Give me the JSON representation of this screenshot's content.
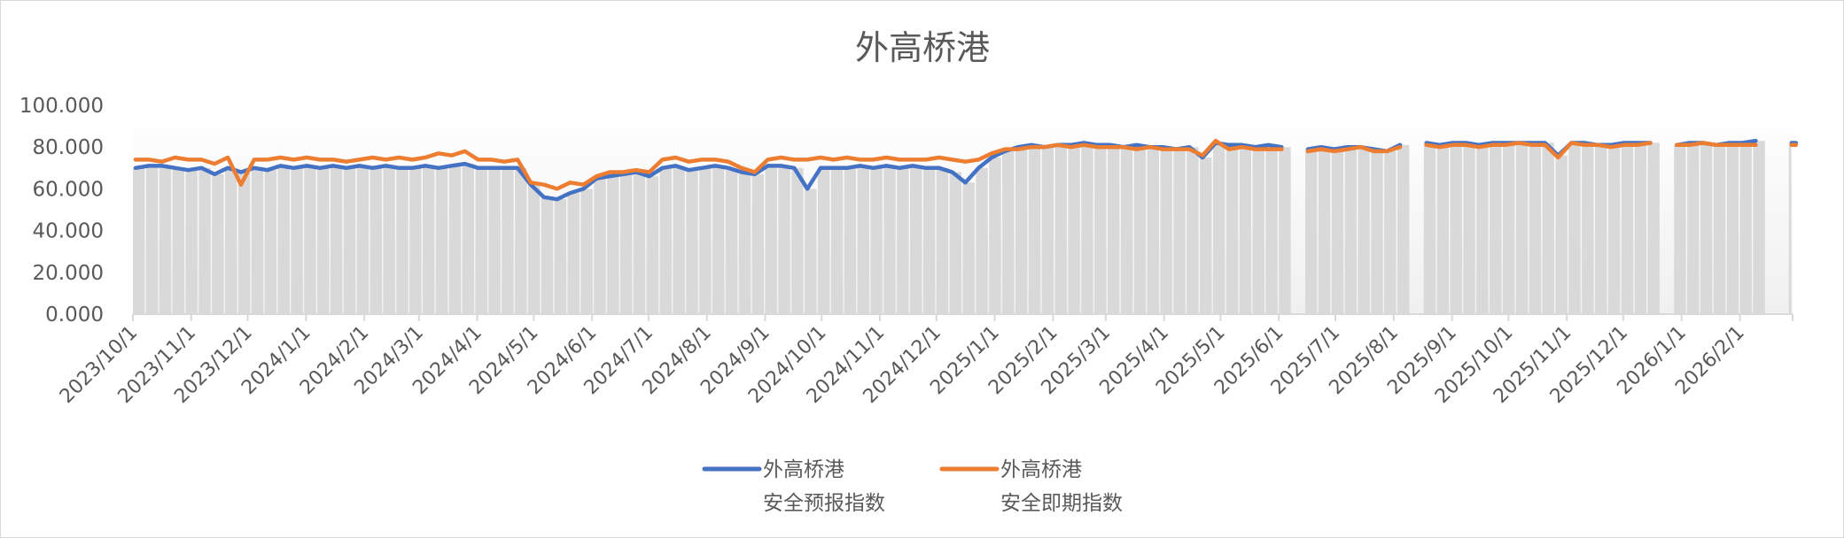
{
  "chart_data": {
    "type": "line",
    "title": "外高桥港",
    "ylim": [
      0,
      100
    ],
    "yticks": [
      "0.000",
      "20.000",
      "40.000",
      "60.000",
      "80.000",
      "100.000"
    ],
    "xlim": [
      "2023-10-01",
      "2026-03-01"
    ],
    "xticks": [
      "2023/10/1",
      "2023/11/1",
      "2023/12/1",
      "2024/1/1",
      "2024/2/1",
      "2024/3/1",
      "2024/4/1",
      "2024/5/1",
      "2024/6/1",
      "2024/7/1",
      "2024/8/1",
      "2024/9/1",
      "2024/10/1",
      "2024/11/1",
      "2024/12/1",
      "2025/1/1",
      "2025/2/1",
      "2025/3/1",
      "2025/4/1",
      "2025/5/1",
      "2025/6/1",
      "2025/7/1",
      "2025/8/1",
      "2025/9/1",
      "2025/10/1",
      "2025/11/1",
      "2025/12/1",
      "2026/1/1",
      "2026/2/1"
    ],
    "legend_placement": "bottom",
    "grid": false,
    "colors": {
      "forecast": "#4472c4",
      "immediate": "#ed7d31",
      "columns": "#d9d9d9"
    },
    "series": [
      {
        "name": "外高桥港\n安全预报指数",
        "legend_line1": "外高桥港",
        "legend_line2": "安全预报指数"
      },
      {
        "name": "外高桥港\n安全即期指数",
        "legend_line1": "外高桥港",
        "legend_line2": "安全即期指数"
      }
    ],
    "columns_follow": "forecast",
    "points": [
      [
        "2023-10-01",
        70,
        74
      ],
      [
        "2023-10-08",
        71,
        74
      ],
      [
        "2023-10-15",
        71,
        73
      ],
      [
        "2023-10-22",
        70,
        75
      ],
      [
        "2023-10-29",
        69,
        74
      ],
      [
        "2023-11-05",
        70,
        74
      ],
      [
        "2023-11-12",
        67,
        72
      ],
      [
        "2023-11-19",
        70,
        75
      ],
      [
        "2023-11-26",
        68,
        62
      ],
      [
        "2023-12-03",
        70,
        74
      ],
      [
        "2023-12-10",
        69,
        74
      ],
      [
        "2023-12-17",
        71,
        75
      ],
      [
        "2023-12-24",
        70,
        74
      ],
      [
        "2023-12-31",
        71,
        75
      ],
      [
        "2024-01-07",
        70,
        74
      ],
      [
        "2024-01-14",
        71,
        74
      ],
      [
        "2024-01-21",
        70,
        73
      ],
      [
        "2024-01-28",
        71,
        74
      ],
      [
        "2024-02-04",
        70,
        75
      ],
      [
        "2024-02-11",
        71,
        74
      ],
      [
        "2024-02-18",
        70,
        75
      ],
      [
        "2024-02-25",
        70,
        74
      ],
      [
        "2024-03-03",
        71,
        75
      ],
      [
        "2024-03-10",
        70,
        77
      ],
      [
        "2024-03-17",
        71,
        76
      ],
      [
        "2024-03-24",
        72,
        78
      ],
      [
        "2024-03-31",
        70,
        74
      ],
      [
        "2024-04-07",
        70,
        74
      ],
      [
        "2024-04-14",
        70,
        73
      ],
      [
        "2024-04-21",
        70,
        74
      ],
      [
        "2024-04-28",
        62,
        63
      ],
      [
        "2024-05-05",
        56,
        62
      ],
      [
        "2024-05-12",
        55,
        60
      ],
      [
        "2024-05-19",
        58,
        63
      ],
      [
        "2024-05-26",
        60,
        62
      ],
      [
        "2024-06-02",
        65,
        66
      ],
      [
        "2024-06-09",
        66,
        68
      ],
      [
        "2024-06-16",
        67,
        68
      ],
      [
        "2024-06-23",
        68,
        69
      ],
      [
        "2024-06-30",
        66,
        68
      ],
      [
        "2024-07-07",
        70,
        74
      ],
      [
        "2024-07-14",
        71,
        75
      ],
      [
        "2024-07-21",
        69,
        73
      ],
      [
        "2024-07-28",
        70,
        74
      ],
      [
        "2024-08-04",
        71,
        74
      ],
      [
        "2024-08-11",
        70,
        73
      ],
      [
        "2024-08-18",
        68,
        70
      ],
      [
        "2024-08-25",
        67,
        68
      ],
      [
        "2024-09-01",
        71,
        74
      ],
      [
        "2024-09-08",
        71,
        75
      ],
      [
        "2024-09-15",
        70,
        74
      ],
      [
        "2024-09-22",
        60,
        74
      ],
      [
        "2024-09-29",
        70,
        75
      ],
      [
        "2024-10-06",
        70,
        74
      ],
      [
        "2024-10-13",
        70,
        75
      ],
      [
        "2024-10-20",
        71,
        74
      ],
      [
        "2024-10-27",
        70,
        74
      ],
      [
        "2024-11-03",
        71,
        75
      ],
      [
        "2024-11-10",
        70,
        74
      ],
      [
        "2024-11-17",
        71,
        74
      ],
      [
        "2024-11-24",
        70,
        74
      ],
      [
        "2024-12-01",
        70,
        75
      ],
      [
        "2024-12-08",
        68,
        74
      ],
      [
        "2024-12-15",
        63,
        73
      ],
      [
        "2024-12-22",
        70,
        74
      ],
      [
        "2024-12-29",
        75,
        77
      ],
      [
        "2025-01-05",
        78,
        79
      ],
      [
        "2025-01-12",
        80,
        79
      ],
      [
        "2025-01-19",
        81,
        80
      ],
      [
        "2025-01-26",
        80,
        80
      ],
      [
        "2025-02-02",
        81,
        81
      ],
      [
        "2025-02-09",
        81,
        80
      ],
      [
        "2025-02-16",
        82,
        81
      ],
      [
        "2025-02-23",
        81,
        80
      ],
      [
        "2025-03-02",
        81,
        80
      ],
      [
        "2025-03-09",
        80,
        80
      ],
      [
        "2025-03-16",
        81,
        79
      ],
      [
        "2025-03-23",
        80,
        80
      ],
      [
        "2025-03-30",
        80,
        79
      ],
      [
        "2025-04-06",
        79,
        79
      ],
      [
        "2025-04-13",
        80,
        79
      ],
      [
        "2025-04-20",
        75,
        76
      ],
      [
        "2025-04-27",
        82,
        83
      ],
      [
        "2025-05-04",
        81,
        79
      ],
      [
        "2025-05-11",
        81,
        80
      ],
      [
        "2025-05-18",
        80,
        79
      ],
      [
        "2025-05-25",
        81,
        79
      ],
      [
        "2025-06-01",
        80,
        79
      ],
      [
        "2025-06-08",
        null,
        null
      ],
      [
        "2025-06-15",
        79,
        78
      ],
      [
        "2025-06-22",
        80,
        79
      ],
      [
        "2025-06-29",
        79,
        78
      ],
      [
        "2025-07-06",
        80,
        79
      ],
      [
        "2025-07-13",
        80,
        80
      ],
      [
        "2025-07-20",
        79,
        78
      ],
      [
        "2025-07-27",
        78,
        78
      ],
      [
        "2025-08-03",
        81,
        80
      ],
      [
        "2025-08-10",
        null,
        null
      ],
      [
        "2025-08-17",
        82,
        81
      ],
      [
        "2025-08-24",
        81,
        80
      ],
      [
        "2025-08-31",
        82,
        81
      ],
      [
        "2025-09-07",
        82,
        81
      ],
      [
        "2025-09-14",
        81,
        80
      ],
      [
        "2025-09-21",
        82,
        81
      ],
      [
        "2025-09-28",
        82,
        81
      ],
      [
        "2025-10-05",
        82,
        82
      ],
      [
        "2025-10-12",
        82,
        81
      ],
      [
        "2025-10-19",
        82,
        81
      ],
      [
        "2025-10-26",
        76,
        75
      ],
      [
        "2025-11-02",
        82,
        82
      ],
      [
        "2025-11-09",
        82,
        81
      ],
      [
        "2025-11-16",
        81,
        81
      ],
      [
        "2025-11-23",
        81,
        80
      ],
      [
        "2025-11-30",
        82,
        81
      ],
      [
        "2025-12-07",
        82,
        81
      ],
      [
        "2025-12-14",
        82,
        82
      ],
      [
        "2025-12-21",
        null,
        null
      ],
      [
        "2025-12-28",
        81,
        81
      ],
      [
        "2026-01-04",
        82,
        81
      ],
      [
        "2026-01-11",
        82,
        82
      ],
      [
        "2026-01-18",
        81,
        81
      ],
      [
        "2026-01-25",
        82,
        81
      ],
      [
        "2026-02-01",
        82,
        81
      ],
      [
        "2026-02-08",
        83,
        81
      ],
      [
        "2026-02-15",
        null,
        null
      ],
      [
        "2026-02-22",
        null,
        null
      ],
      [
        "2026-02-27",
        82,
        81
      ]
    ]
  }
}
